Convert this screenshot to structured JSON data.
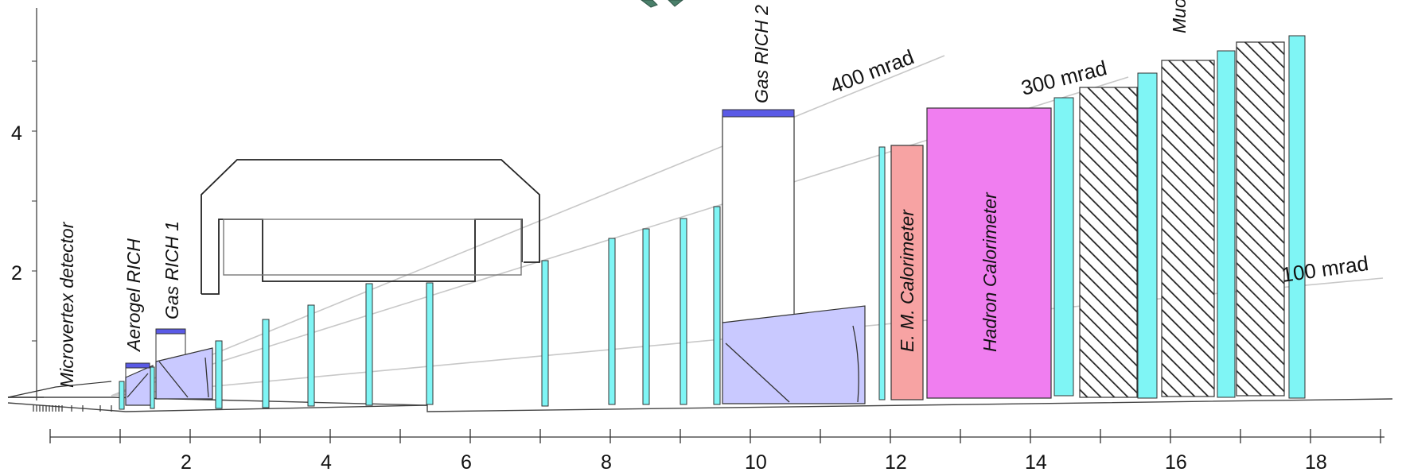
{
  "y_axis": {
    "labels": [
      "2",
      "4"
    ]
  },
  "x_axis": {
    "labels": [
      "2",
      "4",
      "6",
      "8",
      "10",
      "12",
      "14",
      "16",
      "18"
    ]
  },
  "detector_labels": {
    "microvertex": "Microvertex detector",
    "aerogel_rich": "Aerogel RICH",
    "gas_rich_1": "Gas RICH 1",
    "gas_rich_2": "Gas RICH 2",
    "em_calorimeter": "E. M. Calorimeter",
    "hadron_calorimeter": "Hadron Calorimeter",
    "muon": "Muon"
  },
  "angle_labels": {
    "a400": "400 mrad",
    "a300": "300 mrad",
    "a100": "100 mrad"
  },
  "colors": {
    "tracker": "#7ff5f5",
    "rich_fill": "#c9c9ff",
    "photodetector": "#5a5ae6",
    "em_cal": "#f7a3a3",
    "hadron_cal": "#f07ef0",
    "line": "#222222",
    "angle_line": "#c8c8c8"
  }
}
